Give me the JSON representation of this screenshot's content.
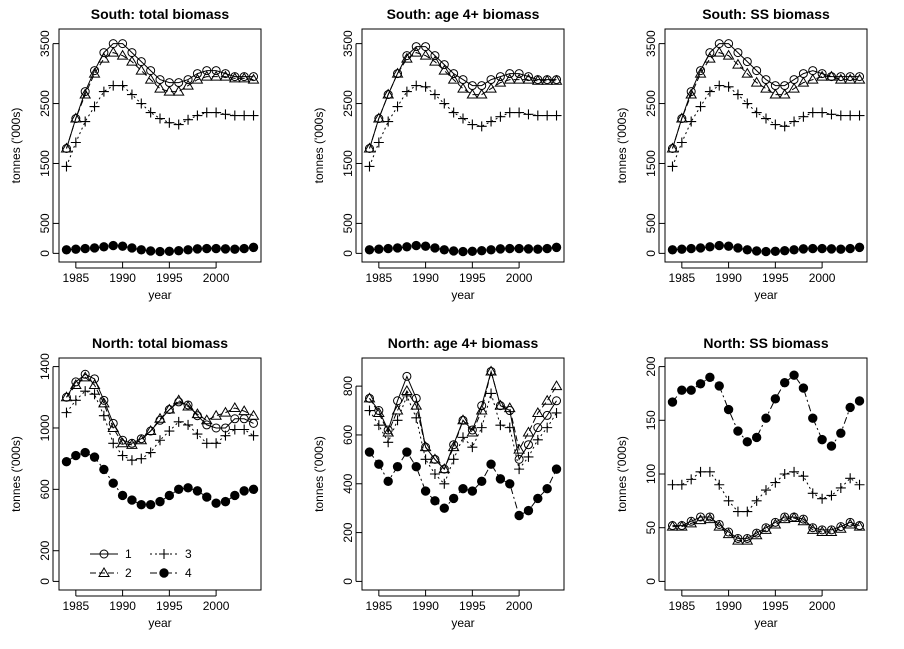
{
  "chart_data": [
    {
      "type": "line",
      "title": "South: total biomass",
      "xlabel": "year",
      "ylabel": "tonnes ('000s)",
      "xlim": [
        1984,
        2004
      ],
      "ylim": [
        0,
        3600
      ],
      "xticks": [
        1985,
        1990,
        1995,
        2000
      ],
      "yticks": [
        0,
        500,
        1500,
        2500,
        3500
      ],
      "x": [
        1984,
        1985,
        1986,
        1987,
        1988,
        1989,
        1990,
        1991,
        1992,
        1993,
        1994,
        1995,
        1996,
        1997,
        1998,
        1999,
        2000,
        2001,
        2002,
        2003,
        2004
      ],
      "series": [
        {
          "name": "1",
          "values": [
            1750,
            2250,
            2700,
            3050,
            3350,
            3500,
            3500,
            3350,
            3200,
            3050,
            2900,
            2850,
            2850,
            2900,
            3000,
            3050,
            3050,
            3000,
            2950,
            2950,
            2950
          ]
        },
        {
          "name": "2",
          "values": [
            1750,
            2250,
            2650,
            3000,
            3250,
            3350,
            3300,
            3200,
            3050,
            2900,
            2750,
            2700,
            2700,
            2800,
            2900,
            2950,
            2950,
            2950,
            2920,
            2920,
            2900
          ]
        },
        {
          "name": "3",
          "values": [
            1450,
            1850,
            2200,
            2450,
            2700,
            2800,
            2800,
            2650,
            2500,
            2350,
            2250,
            2180,
            2150,
            2230,
            2300,
            2350,
            2350,
            2320,
            2300,
            2300,
            2300
          ]
        },
        {
          "name": "4",
          "values": [
            60,
            70,
            80,
            90,
            110,
            130,
            120,
            90,
            60,
            40,
            30,
            35,
            45,
            60,
            75,
            80,
            80,
            75,
            70,
            80,
            100
          ]
        }
      ]
    },
    {
      "type": "line",
      "title": "South: age 4+ biomass",
      "xlabel": "year",
      "ylabel": "tonnes ('000s)",
      "xlim": [
        1984,
        2004
      ],
      "ylim": [
        0,
        3600
      ],
      "xticks": [
        1985,
        1990,
        1995,
        2000
      ],
      "yticks": [
        0,
        500,
        1500,
        2500,
        3500
      ],
      "x": [
        1984,
        1985,
        1986,
        1987,
        1988,
        1989,
        1990,
        1991,
        1992,
        1993,
        1994,
        1995,
        1996,
        1997,
        1998,
        1999,
        2000,
        2001,
        2002,
        2003,
        2004
      ],
      "series": [
        {
          "name": "1",
          "values": [
            1750,
            2250,
            2650,
            3000,
            3300,
            3450,
            3450,
            3300,
            3150,
            3000,
            2900,
            2800,
            2800,
            2900,
            2950,
            3000,
            3000,
            2950,
            2900,
            2900,
            2900
          ]
        },
        {
          "name": "2",
          "values": [
            1750,
            2250,
            2650,
            3000,
            3250,
            3350,
            3300,
            3200,
            3050,
            2900,
            2750,
            2650,
            2650,
            2750,
            2850,
            2900,
            2900,
            2900,
            2880,
            2880,
            2880
          ]
        },
        {
          "name": "3",
          "values": [
            1450,
            1850,
            2200,
            2450,
            2700,
            2800,
            2780,
            2650,
            2500,
            2350,
            2250,
            2150,
            2120,
            2200,
            2280,
            2350,
            2350,
            2320,
            2300,
            2300,
            2300
          ]
        },
        {
          "name": "4",
          "values": [
            60,
            70,
            80,
            90,
            110,
            130,
            120,
            90,
            60,
            40,
            30,
            35,
            45,
            60,
            75,
            80,
            80,
            75,
            70,
            80,
            100
          ]
        }
      ]
    },
    {
      "type": "line",
      "title": "South: SS biomass",
      "xlabel": "year",
      "ylabel": "tonnes ('000s)",
      "xlim": [
        1984,
        2004
      ],
      "ylim": [
        0,
        3600
      ],
      "xticks": [
        1985,
        1990,
        1995,
        2000
      ],
      "yticks": [
        0,
        500,
        1500,
        2500,
        3500
      ],
      "x": [
        1984,
        1985,
        1986,
        1987,
        1988,
        1989,
        1990,
        1991,
        1992,
        1993,
        1994,
        1995,
        1996,
        1997,
        1998,
        1999,
        2000,
        2001,
        2002,
        2003,
        2004
      ],
      "series": [
        {
          "name": "1",
          "values": [
            1750,
            2250,
            2700,
            3050,
            3350,
            3500,
            3500,
            3350,
            3200,
            3050,
            2900,
            2800,
            2800,
            2900,
            3000,
            3050,
            3000,
            2950,
            2950,
            2950,
            2950
          ]
        },
        {
          "name": "2",
          "values": [
            1750,
            2250,
            2650,
            3000,
            3250,
            3350,
            3300,
            3150,
            3000,
            2850,
            2750,
            2650,
            2650,
            2750,
            2850,
            2900,
            2950,
            2950,
            2900,
            2900,
            2900
          ]
        },
        {
          "name": "3",
          "values": [
            1450,
            1850,
            2200,
            2450,
            2700,
            2800,
            2780,
            2650,
            2500,
            2350,
            2250,
            2150,
            2120,
            2200,
            2280,
            2350,
            2350,
            2320,
            2300,
            2300,
            2300
          ]
        },
        {
          "name": "4",
          "values": [
            60,
            70,
            80,
            90,
            110,
            130,
            120,
            90,
            60,
            40,
            30,
            35,
            45,
            60,
            75,
            80,
            80,
            75,
            70,
            80,
            100
          ]
        }
      ]
    },
    {
      "type": "line",
      "title": "North: total biomass",
      "xlabel": "year",
      "ylabel": "tonnes ('000s)",
      "xlim": [
        1984,
        2004
      ],
      "ylim": [
        0,
        1400
      ],
      "xticks": [
        1985,
        1990,
        1995,
        2000
      ],
      "yticks": [
        0,
        200,
        600,
        1000,
        1400
      ],
      "x": [
        1984,
        1985,
        1986,
        1987,
        1988,
        1989,
        1990,
        1991,
        1992,
        1993,
        1994,
        1995,
        1996,
        1997,
        1998,
        1999,
        2000,
        2001,
        2002,
        2003,
        2004
      ],
      "series": [
        {
          "name": "1",
          "values": [
            1200,
            1300,
            1350,
            1320,
            1180,
            1030,
            920,
            900,
            930,
            980,
            1050,
            1120,
            1170,
            1150,
            1080,
            1020,
            1000,
            1000,
            1060,
            1060,
            1030
          ]
        },
        {
          "name": "2",
          "values": [
            1200,
            1280,
            1330,
            1280,
            1160,
            1000,
            900,
            890,
            920,
            980,
            1060,
            1120,
            1180,
            1140,
            1090,
            1050,
            1080,
            1100,
            1130,
            1110,
            1080
          ]
        },
        {
          "name": "3",
          "values": [
            1100,
            1180,
            1240,
            1220,
            1080,
            900,
            820,
            790,
            800,
            840,
            920,
            980,
            1040,
            1020,
            960,
            900,
            900,
            950,
            990,
            990,
            950
          ]
        },
        {
          "name": "4",
          "values": [
            780,
            820,
            840,
            810,
            730,
            640,
            560,
            530,
            500,
            500,
            520,
            560,
            600,
            610,
            590,
            550,
            510,
            520,
            560,
            590,
            600
          ]
        }
      ],
      "legend": {
        "position": "bottom-left",
        "entries": [
          {
            "label": "1",
            "marker": "circle"
          },
          {
            "label": "3",
            "marker": "plus"
          },
          {
            "label": "2",
            "marker": "triangle"
          },
          {
            "label": "4",
            "marker": "filled-circle"
          }
        ]
      }
    },
    {
      "type": "line",
      "title": "North: age 4+ biomass",
      "xlabel": "year",
      "ylabel": "tonnes ('000s)",
      "xlim": [
        1984,
        2004
      ],
      "ylim": [
        0,
        880
      ],
      "xticks": [
        1985,
        1990,
        1995,
        2000
      ],
      "yticks": [
        0,
        200,
        400,
        600,
        800
      ],
      "x": [
        1984,
        1985,
        1986,
        1987,
        1988,
        1989,
        1990,
        1991,
        1992,
        1993,
        1994,
        1995,
        1996,
        1997,
        1998,
        1999,
        2000,
        2001,
        2002,
        2003,
        2004
      ],
      "series": [
        {
          "name": "1",
          "values": [
            750,
            700,
            620,
            740,
            840,
            750,
            550,
            500,
            460,
            560,
            660,
            620,
            720,
            860,
            720,
            700,
            500,
            560,
            630,
            680,
            740
          ]
        },
        {
          "name": "2",
          "values": [
            750,
            690,
            610,
            700,
            780,
            720,
            550,
            500,
            460,
            550,
            660,
            610,
            700,
            860,
            720,
            710,
            540,
            610,
            690,
            740,
            800
          ]
        },
        {
          "name": "3",
          "values": [
            700,
            640,
            570,
            660,
            760,
            670,
            500,
            440,
            400,
            500,
            590,
            550,
            630,
            770,
            640,
            630,
            460,
            510,
            580,
            630,
            690
          ]
        },
        {
          "name": "4",
          "values": [
            530,
            480,
            410,
            470,
            530,
            470,
            370,
            330,
            300,
            340,
            380,
            370,
            410,
            480,
            420,
            400,
            270,
            290,
            340,
            380,
            460
          ]
        }
      ]
    },
    {
      "type": "line",
      "title": "North: SS biomass",
      "xlabel": "year",
      "ylabel": "tonnes ('000s)",
      "xlim": [
        1984,
        2004
      ],
      "ylim": [
        0,
        200
      ],
      "xticks": [
        1985,
        1990,
        1995,
        2000
      ],
      "yticks": [
        0,
        50,
        100,
        150,
        200
      ],
      "x": [
        1984,
        1985,
        1986,
        1987,
        1988,
        1989,
        1990,
        1991,
        1992,
        1993,
        1994,
        1995,
        1996,
        1997,
        1998,
        1999,
        2000,
        2001,
        2002,
        2003,
        2004
      ],
      "series": [
        {
          "name": "1",
          "values": [
            52,
            52,
            56,
            60,
            60,
            53,
            46,
            40,
            40,
            45,
            50,
            55,
            60,
            60,
            58,
            50,
            48,
            48,
            51,
            55,
            52
          ]
        },
        {
          "name": "2",
          "values": [
            51,
            51,
            54,
            57,
            58,
            51,
            44,
            38,
            38,
            43,
            48,
            53,
            58,
            59,
            56,
            48,
            46,
            46,
            49,
            53,
            51
          ]
        },
        {
          "name": "3",
          "values": [
            90,
            90,
            95,
            102,
            102,
            90,
            75,
            65,
            65,
            75,
            85,
            92,
            100,
            102,
            98,
            82,
            77,
            80,
            87,
            96,
            90
          ]
        },
        {
          "name": "4",
          "values": [
            167,
            178,
            178,
            184,
            190,
            182,
            160,
            140,
            130,
            134,
            152,
            170,
            185,
            192,
            180,
            152,
            132,
            126,
            138,
            162,
            168
          ]
        }
      ]
    }
  ]
}
